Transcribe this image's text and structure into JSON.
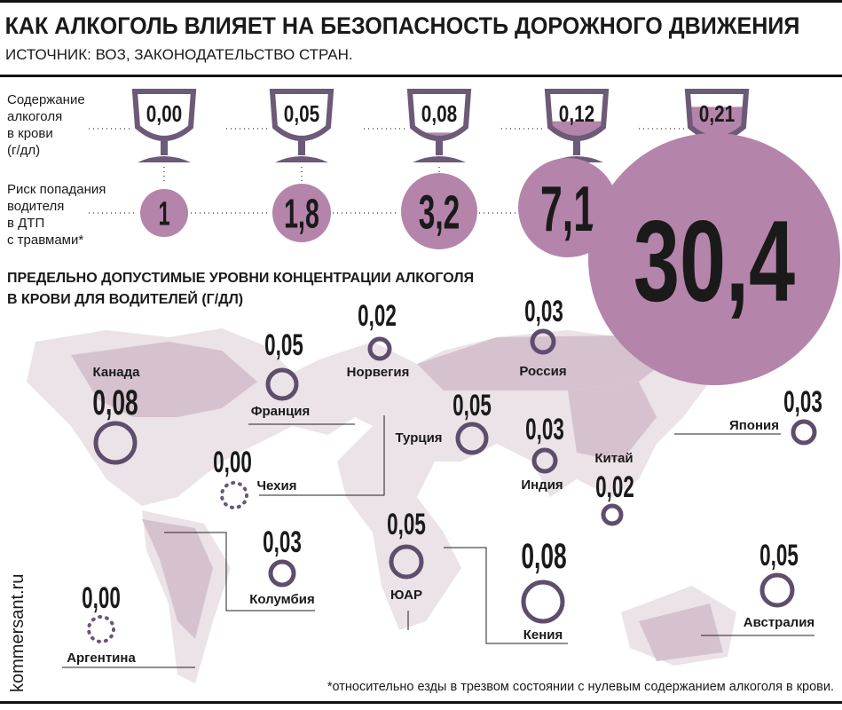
{
  "header": {
    "title": "КАК АЛКОГОЛЬ ВЛИЯЕТ НА БЕЗОПАСНОСТЬ ДОРОЖНОГО ДВИЖЕНИЯ",
    "source": "ИСТОЧНИК: ВОЗ, ЗАКОНОДАТЕЛЬСТВО СТРАН."
  },
  "glasses": {
    "content_label": [
      "Содержание",
      "алкоголя",
      "в крови",
      "(г/дл)"
    ],
    "risk_label": [
      "Риск попадания",
      "водителя",
      "в ДТП",
      "с травмами*"
    ],
    "items": [
      {
        "level": "0,00",
        "risk": "1"
      },
      {
        "level": "0,05",
        "risk": "1,8"
      },
      {
        "level": "0,08",
        "risk": "3,2"
      },
      {
        "level": "0,12",
        "risk": "7,1"
      },
      {
        "level": "0,21",
        "risk": "30,4"
      }
    ]
  },
  "map": {
    "title": [
      "ПРЕДЕЛЬНО ДОПУСТИМЫЕ УРОВНИ КОНЦЕНТРАЦИИ АЛКОГОЛЯ",
      "В КРОВИ ДЛЯ ВОДИТЕЛЕЙ (Г/ДЛ)"
    ],
    "countries": [
      {
        "name": "Канада",
        "value": "0,08"
      },
      {
        "name": "Франция",
        "value": "0,05"
      },
      {
        "name": "Норвегия",
        "value": "0,02"
      },
      {
        "name": "Россия",
        "value": "0,03"
      },
      {
        "name": "Турция",
        "value": "0,05"
      },
      {
        "name": "Япония",
        "value": "0,03"
      },
      {
        "name": "Индия",
        "value": "0,03"
      },
      {
        "name": "Китай",
        "value": "0,02"
      },
      {
        "name": "Чехия",
        "value": "0,00"
      },
      {
        "name": "Колумбия",
        "value": "0,03"
      },
      {
        "name": "ЮАР",
        "value": "0,05"
      },
      {
        "name": "Кения",
        "value": "0,08"
      },
      {
        "name": "Австралия",
        "value": "0,05"
      },
      {
        "name": "Аргентина",
        "value": "0,00"
      }
    ]
  },
  "footnote": "*относительно езды в трезвом состоянии с нулевым содержанием алкоголя в крови.",
  "watermark": "kommersant.ru"
}
